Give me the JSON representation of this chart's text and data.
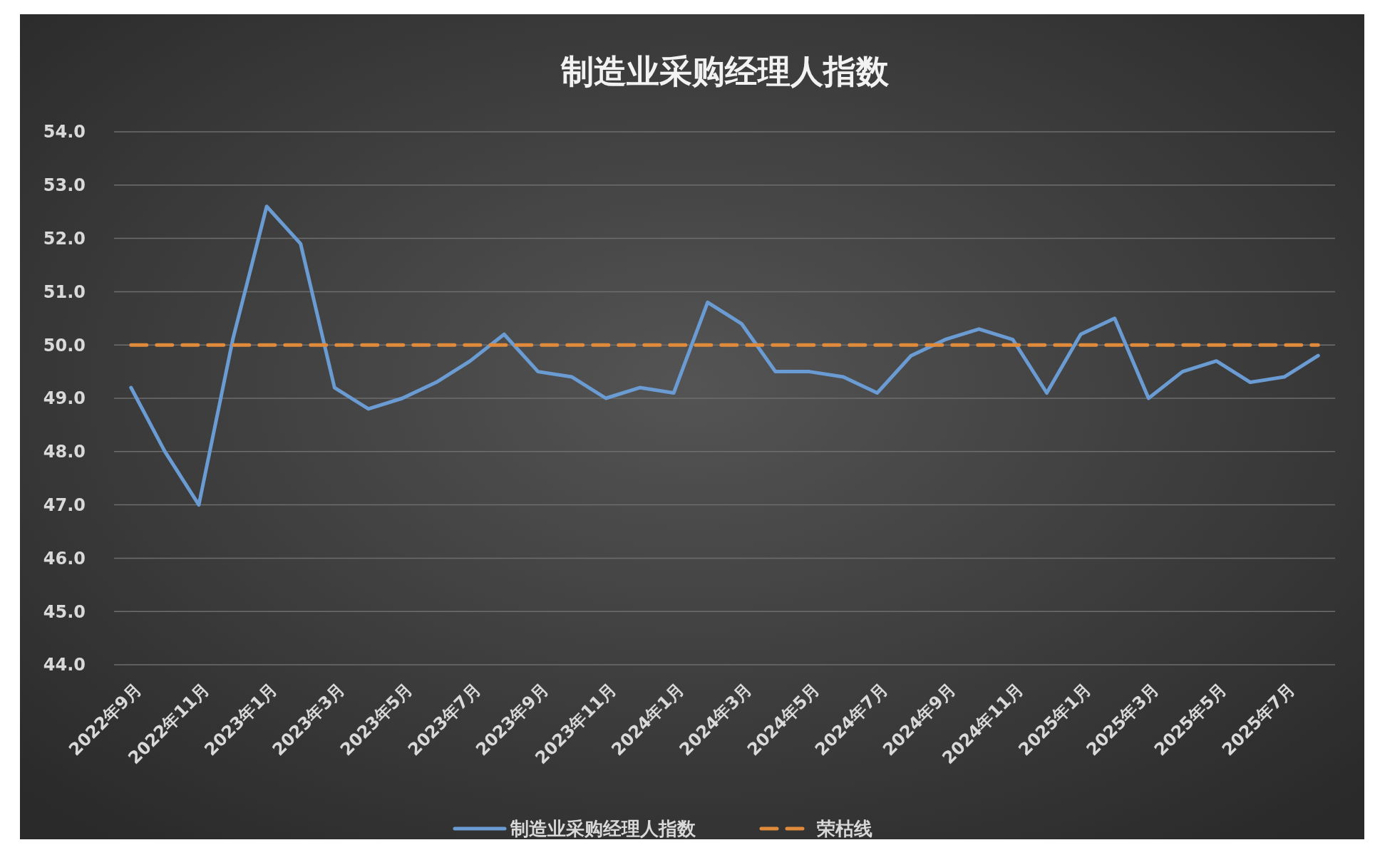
{
  "chart_data": {
    "type": "line",
    "title": "制造业采购经理人指数",
    "categories": [
      "2022年9月",
      null,
      "2022年11月",
      null,
      "2023年1月",
      null,
      "2023年3月",
      null,
      "2023年5月",
      null,
      "2023年7月",
      null,
      "2023年9月",
      null,
      "2023年11月",
      null,
      "2024年1月",
      null,
      "2024年3月",
      null,
      "2024年5月",
      null,
      "2024年7月",
      null,
      "2024年9月",
      null,
      "2024年11月",
      null,
      "2025年1月",
      null,
      "2025年3月",
      null,
      "2025年5月",
      null,
      "2025年7月",
      null
    ],
    "series": [
      {
        "name": "制造业采购经理人指数",
        "color": "#6a9bd2",
        "line_style": "solid",
        "values": [
          49.2,
          48.0,
          47.0,
          50.1,
          52.6,
          51.9,
          49.2,
          48.8,
          49.0,
          49.3,
          49.7,
          50.2,
          49.5,
          49.4,
          49.0,
          49.2,
          49.1,
          50.8,
          50.4,
          49.5,
          49.5,
          49.4,
          49.1,
          49.8,
          50.1,
          50.3,
          50.1,
          49.1,
          50.2,
          50.5,
          49.0,
          49.5,
          49.7,
          49.3,
          49.4,
          49.8
        ]
      },
      {
        "name": "荣枯线",
        "color": "#e08a3c",
        "line_style": "dashed",
        "values": [
          50,
          50,
          50,
          50,
          50,
          50,
          50,
          50,
          50,
          50,
          50,
          50,
          50,
          50,
          50,
          50,
          50,
          50,
          50,
          50,
          50,
          50,
          50,
          50,
          50,
          50,
          50,
          50,
          50,
          50,
          50,
          50,
          50,
          50,
          50,
          50
        ]
      }
    ],
    "ylim": [
      44,
      54
    ],
    "yticks": [
      {
        "value": 44,
        "label": "44.0"
      },
      {
        "value": 45,
        "label": "45.0"
      },
      {
        "value": 46,
        "label": "46.0"
      },
      {
        "value": 47,
        "label": "47.0"
      },
      {
        "value": 48,
        "label": "48.0"
      },
      {
        "value": 49,
        "label": "49.0"
      },
      {
        "value": 50,
        "label": "50.0"
      },
      {
        "value": 51,
        "label": "51.0"
      },
      {
        "value": 52,
        "label": "52.0"
      },
      {
        "value": 53,
        "label": "53.0"
      },
      {
        "value": 54,
        "label": "54.0"
      }
    ],
    "grid": "y",
    "legend": "bottom"
  }
}
